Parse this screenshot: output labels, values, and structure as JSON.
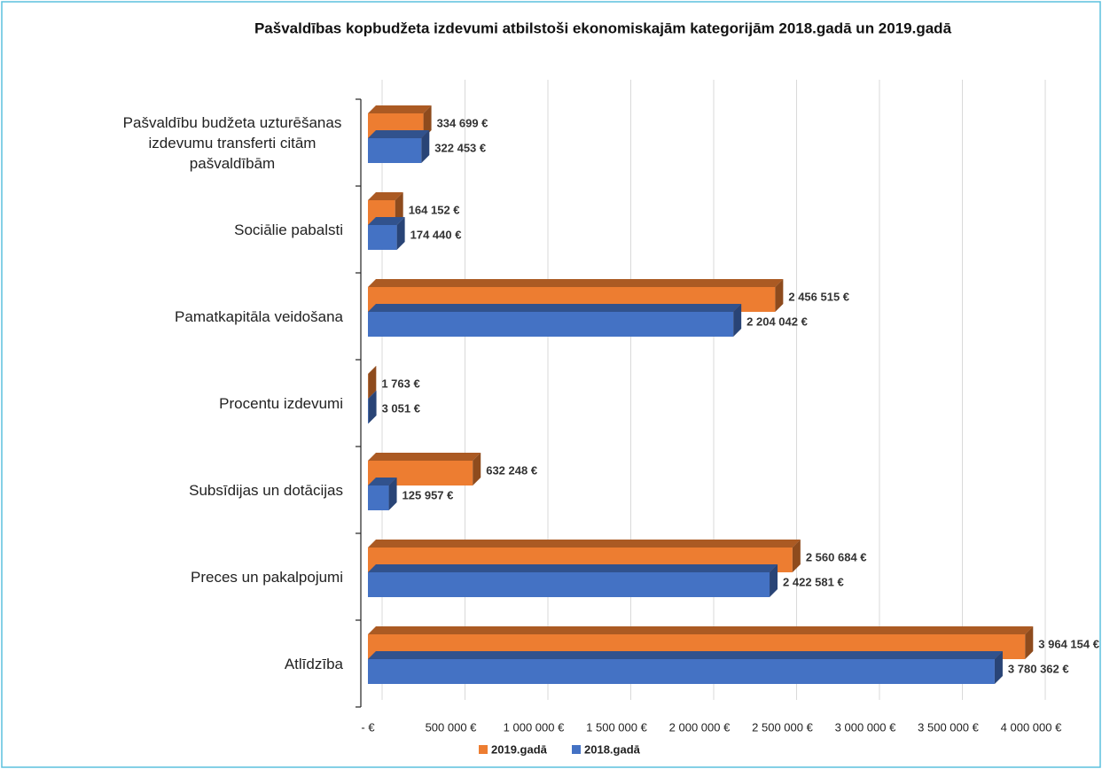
{
  "chart_data": {
    "type": "bar3d_horizontal",
    "title": "Pašvaldības kopbudžeta izdevumi atbilstoši ekonomiskajām kategorijām 2018.gadā un 2019.gadā",
    "categories": [
      "Pašvaldību budžeta uzturēšanas izdevumu transferti citām pašvaldībām",
      "Sociālie pabalsti",
      "Pamatkapitāla veidošana",
      "Procentu izdevumi",
      "Subsīdijas un dotācijas",
      "Preces un pakalpojumi",
      "Atlīdzība"
    ],
    "series": [
      {
        "name": "2019.gadā",
        "color": "#ed7d31",
        "values": [
          334699,
          164152,
          2456515,
          1763,
          632248,
          2560684,
          3964154
        ],
        "value_labels": [
          "334 699 €",
          "164 152 €",
          "2 456 515 €",
          "1 763 €",
          "632 248 €",
          "2 560 684 €",
          "3 964 154 €"
        ]
      },
      {
        "name": "2018.gadā",
        "color": "#4472c4",
        "values": [
          322453,
          174440,
          2204042,
          3051,
          125957,
          2422581,
          3780362
        ],
        "value_labels": [
          "322 453 €",
          "174 440 €",
          "2 204 042 €",
          "3 051 €",
          "125 957 €",
          "2 422 581 €",
          "3 780 362 €"
        ]
      }
    ],
    "xlim": [
      0,
      4000000
    ],
    "xticks": [
      {
        "value": 0,
        "label": "-   €"
      },
      {
        "value": 500000,
        "label": "500 000 €"
      },
      {
        "value": 1000000,
        "label": "1 000 000 €"
      },
      {
        "value": 1500000,
        "label": "1 500 000 €"
      },
      {
        "value": 2000000,
        "label": "2 000 000 €"
      },
      {
        "value": 2500000,
        "label": "2 500 000 €"
      },
      {
        "value": 3000000,
        "label": "3 000 000 €"
      },
      {
        "value": 3500000,
        "label": "3 500 000 €"
      },
      {
        "value": 4000000,
        "label": "4 000 000 €"
      }
    ],
    "grid": true,
    "legend": "bottom"
  }
}
